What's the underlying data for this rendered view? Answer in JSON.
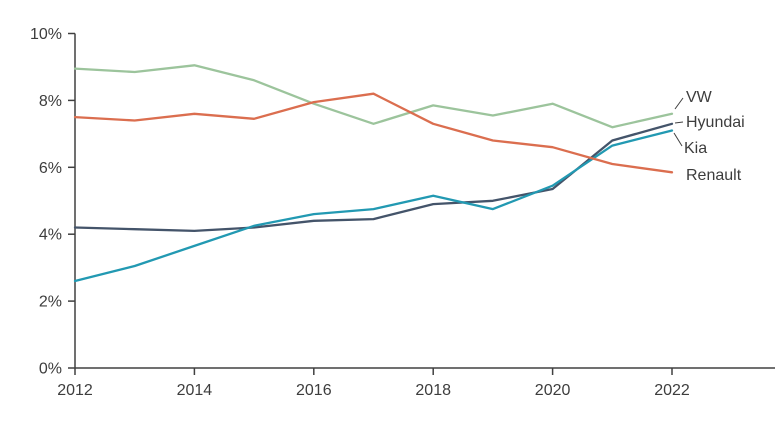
{
  "chart_data": {
    "type": "line",
    "title": "",
    "xlabel": "",
    "ylabel": "",
    "x": [
      2012,
      2013,
      2014,
      2015,
      2016,
      2017,
      2018,
      2019,
      2020,
      2021,
      2022
    ],
    "xlim": [
      2012,
      2022
    ],
    "ylim": [
      0,
      10
    ],
    "grid": false,
    "legend_position": "end-of-line-labels-right",
    "x_ticks": [
      2012,
      2014,
      2016,
      2018,
      2020,
      2022
    ],
    "x_tick_labels": [
      "2012",
      "2014",
      "2016",
      "2018",
      "2020",
      "2022"
    ],
    "y_ticks": [
      0,
      2,
      4,
      6,
      8,
      10
    ],
    "y_tick_labels": [
      "0%",
      "2%",
      "4%",
      "6%",
      "8%",
      "10%"
    ],
    "axis_color": "#404040",
    "text_color": "#3d3d3d",
    "series": [
      {
        "name": "VW",
        "color": "#9cc49c",
        "values": [
          8.95,
          8.85,
          9.05,
          8.6,
          7.9,
          7.3,
          7.85,
          7.55,
          7.9,
          7.2,
          7.6
        ]
      },
      {
        "name": "Hyundai",
        "color": "#44546a",
        "values": [
          4.2,
          4.15,
          4.1,
          4.2,
          4.4,
          4.45,
          4.9,
          5.0,
          5.35,
          6.8,
          7.3
        ]
      },
      {
        "name": "Kia",
        "color": "#2299b2",
        "values": [
          2.6,
          3.05,
          3.65,
          4.25,
          4.6,
          4.75,
          5.15,
          4.75,
          5.45,
          6.65,
          7.1
        ]
      },
      {
        "name": "Renault",
        "color": "#db6e4f",
        "values": [
          7.5,
          7.4,
          7.6,
          7.45,
          7.95,
          8.2,
          7.3,
          6.8,
          6.6,
          6.1,
          5.85
        ]
      }
    ]
  }
}
